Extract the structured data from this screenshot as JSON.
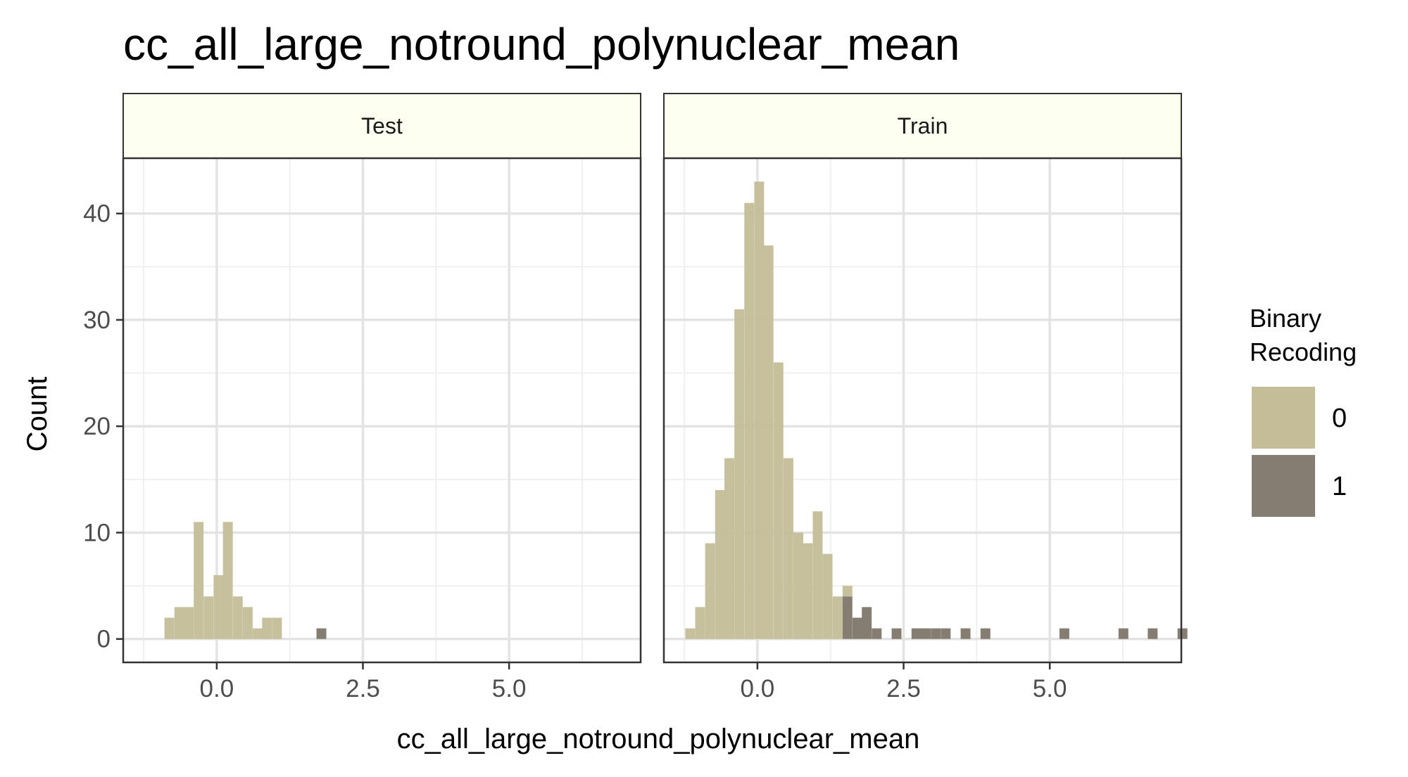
{
  "chart_data": {
    "type": "bar",
    "subtype": "faceted-stacked-histogram",
    "title": "cc_all_large_notround_polynuclear_mean",
    "xlabel": "cc_all_large_notround_polynuclear_mean",
    "ylabel": "Count",
    "xlim": [
      -1.6,
      7.25
    ],
    "ylim": [
      -2.2,
      45.2
    ],
    "x_ticks": [
      0.0,
      2.5,
      5.0
    ],
    "x_tick_labels": [
      "0.0",
      "2.5",
      "5.0"
    ],
    "y_ticks": [
      0,
      10,
      20,
      30,
      40
    ],
    "y_tick_labels": [
      "0",
      "10",
      "20",
      "30",
      "40"
    ],
    "grid": true,
    "bin_width": 0.168,
    "legend": {
      "title_lines": [
        "Binary",
        "Recoding"
      ],
      "position": "right",
      "entries": [
        {
          "label": "0",
          "color": "#c4bd97"
        },
        {
          "label": "1",
          "color": "#857d72"
        }
      ]
    },
    "facets": [
      {
        "label": "Test",
        "bins": [
          {
            "x": -0.81,
            "class0": 2,
            "class1": 0
          },
          {
            "x": -0.64,
            "class0": 3,
            "class1": 0
          },
          {
            "x": -0.48,
            "class0": 3,
            "class1": 0
          },
          {
            "x": -0.31,
            "class0": 11,
            "class1": 0
          },
          {
            "x": -0.14,
            "class0": 4,
            "class1": 0
          },
          {
            "x": 0.03,
            "class0": 6,
            "class1": 0
          },
          {
            "x": 0.19,
            "class0": 11,
            "class1": 0
          },
          {
            "x": 0.36,
            "class0": 4,
            "class1": 0
          },
          {
            "x": 0.53,
            "class0": 3,
            "class1": 0
          },
          {
            "x": 0.7,
            "class0": 1,
            "class1": 0
          },
          {
            "x": 0.86,
            "class0": 2,
            "class1": 0
          },
          {
            "x": 1.03,
            "class0": 2,
            "class1": 0
          },
          {
            "x": 1.79,
            "class0": 0,
            "class1": 1
          }
        ]
      },
      {
        "label": "Train",
        "bins": [
          {
            "x": -1.15,
            "class0": 1,
            "class1": 0
          },
          {
            "x": -0.98,
            "class0": 3,
            "class1": 0
          },
          {
            "x": -0.81,
            "class0": 9,
            "class1": 0
          },
          {
            "x": -0.64,
            "class0": 14,
            "class1": 0
          },
          {
            "x": -0.48,
            "class0": 17,
            "class1": 0
          },
          {
            "x": -0.31,
            "class0": 31,
            "class1": 0
          },
          {
            "x": -0.14,
            "class0": 41,
            "class1": 0
          },
          {
            "x": 0.03,
            "class0": 43,
            "class1": 0
          },
          {
            "x": 0.19,
            "class0": 37,
            "class1": 0
          },
          {
            "x": 0.36,
            "class0": 26,
            "class1": 0
          },
          {
            "x": 0.53,
            "class0": 17,
            "class1": 0
          },
          {
            "x": 0.7,
            "class0": 10,
            "class1": 0
          },
          {
            "x": 0.86,
            "class0": 9,
            "class1": 0
          },
          {
            "x": 1.03,
            "class0": 12,
            "class1": 0
          },
          {
            "x": 1.2,
            "class0": 8,
            "class1": 0
          },
          {
            "x": 1.37,
            "class0": 4,
            "class1": 0
          },
          {
            "x": 1.54,
            "class0": 1,
            "class1": 4
          },
          {
            "x": 1.71,
            "class0": 0,
            "class1": 2
          },
          {
            "x": 1.87,
            "class0": 0,
            "class1": 3
          },
          {
            "x": 2.04,
            "class0": 0,
            "class1": 1
          },
          {
            "x": 2.21,
            "class0": 0,
            "class1": 0
          },
          {
            "x": 2.38,
            "class0": 0,
            "class1": 1
          },
          {
            "x": 2.72,
            "class0": 0,
            "class1": 1
          },
          {
            "x": 2.88,
            "class0": 0,
            "class1": 1
          },
          {
            "x": 3.05,
            "class0": 0,
            "class1": 1
          },
          {
            "x": 3.22,
            "class0": 0,
            "class1": 1
          },
          {
            "x": 3.56,
            "class0": 0,
            "class1": 1
          },
          {
            "x": 3.9,
            "class0": 0,
            "class1": 1
          },
          {
            "x": 5.25,
            "class0": 0,
            "class1": 1
          },
          {
            "x": 6.26,
            "class0": 0,
            "class1": 1
          },
          {
            "x": 6.76,
            "class0": 0,
            "class1": 1
          },
          {
            "x": 7.27,
            "class0": 0,
            "class1": 1
          }
        ]
      }
    ]
  }
}
